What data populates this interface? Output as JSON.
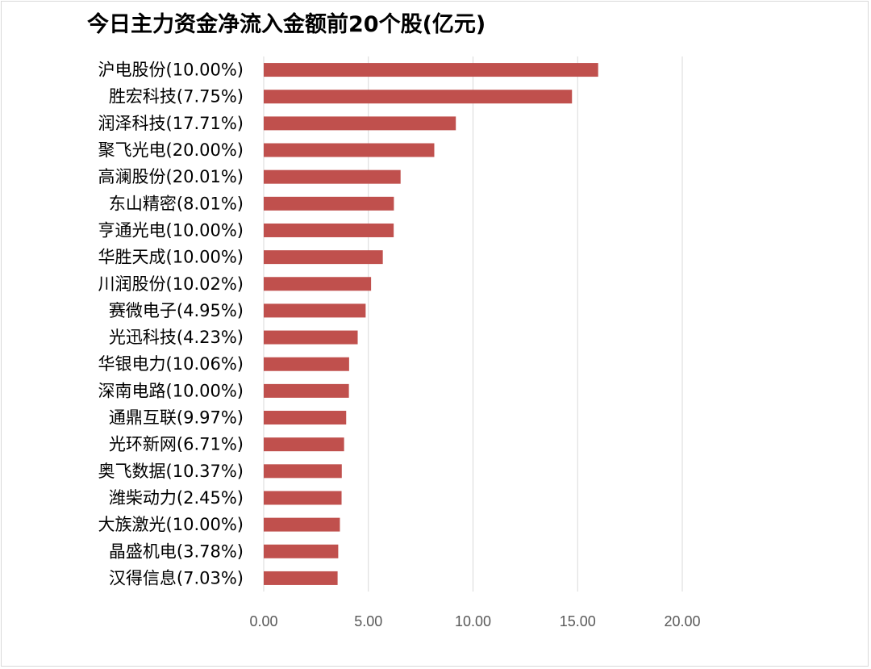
{
  "chart_data": {
    "type": "bar",
    "orientation": "horizontal",
    "title": "今日主力资金净流入金额前20个股(亿元)",
    "categories": [
      "沪电股份(10.00%)",
      "胜宏科技(7.75%)",
      "润泽科技(17.71%)",
      "聚飞光电(20.00%)",
      "高澜股份(20.01%)",
      "东山精密(8.01%)",
      "亨通光电(10.00%)",
      "华胜天成(10.00%)",
      "川润股份(10.02%)",
      "赛微电子(4.95%)",
      "光迅科技(4.23%)",
      "华银电力(10.06%)",
      "深南电路(10.00%)",
      "通鼎互联(9.97%)",
      "光环新网(6.71%)",
      "奥飞数据(10.37%)",
      "潍柴动力(2.45%)",
      "大族激光(10.00%)",
      "晶盛机电(3.78%)",
      "汉得信息(7.03%)"
    ],
    "values": [
      15.98,
      14.73,
      9.18,
      8.15,
      6.54,
      6.22,
      6.21,
      5.69,
      5.13,
      4.87,
      4.49,
      4.08,
      4.07,
      3.94,
      3.84,
      3.73,
      3.72,
      3.64,
      3.56,
      3.53
    ],
    "xlim": [
      0,
      20
    ],
    "ticks": [
      "0.00",
      "5.00",
      "10.00",
      "15.00",
      "20.00"
    ],
    "tick_values": [
      0,
      5,
      10,
      15,
      20
    ],
    "bar_color": "#c0504d",
    "grid": true,
    "legend": "none"
  }
}
